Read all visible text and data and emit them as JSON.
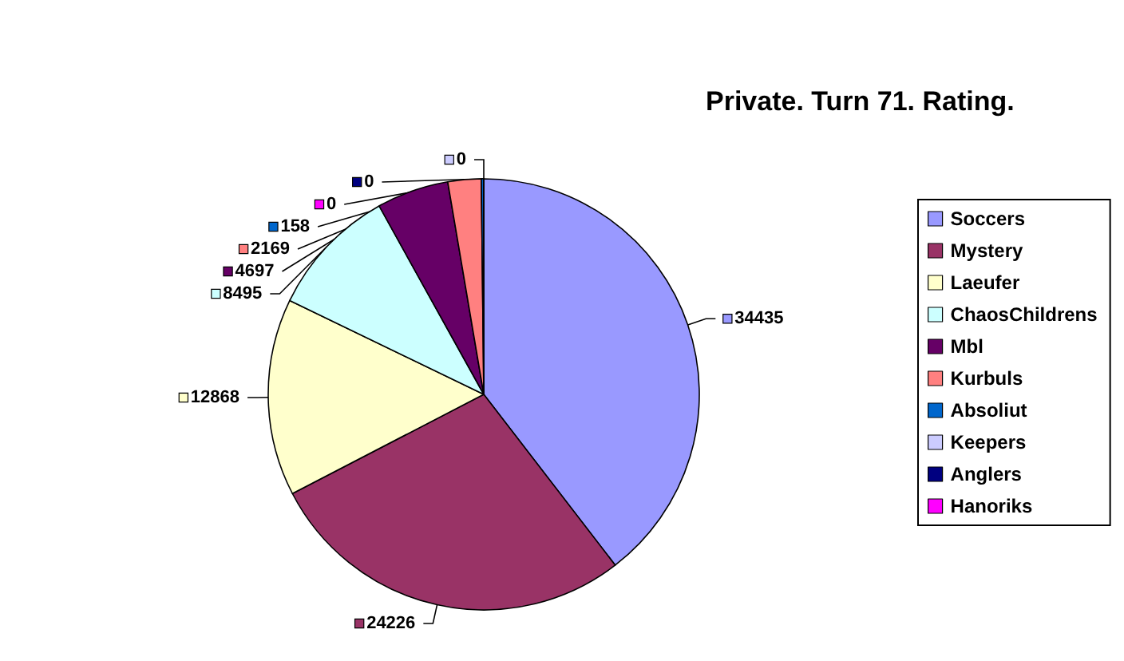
{
  "chart_data": {
    "type": "pie",
    "title": "Private. Turn 71. Rating.",
    "categories": [
      "Soccers",
      "Mystery",
      "Laeufer",
      "ChaosChildrens",
      "Mbl",
      "Kurbuls",
      "Absoliut",
      "Keepers",
      "Anglers",
      "Hanoriks"
    ],
    "values": [
      34435,
      24226,
      12868,
      8495,
      4697,
      2169,
      158,
      0,
      0,
      0
    ],
    "colors": [
      "#9999ff",
      "#993366",
      "#ffffcc",
      "#ccffff",
      "#660066",
      "#ff8080",
      "#0066cc",
      "#ccccff",
      "#000080",
      "#ff00ff"
    ],
    "value_labels": [
      "34435",
      "24226",
      "12868",
      "8495",
      "4697",
      "2169",
      "158",
      "0",
      "0",
      "0"
    ],
    "legend": "right"
  }
}
